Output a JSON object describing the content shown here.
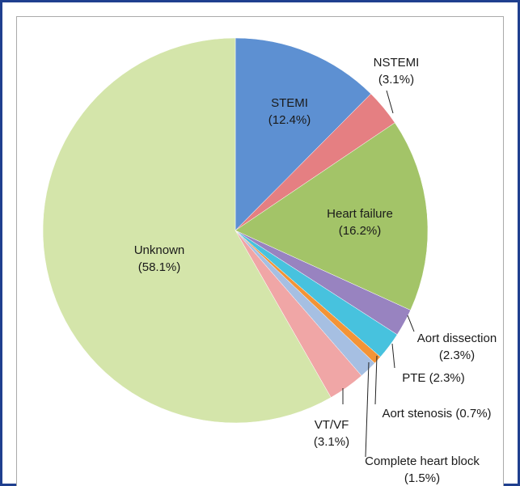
{
  "chart_data": {
    "type": "pie",
    "categories": [
      "STEMI",
      "NSTEMI",
      "Heart failure",
      "Aort dissection",
      "PTE",
      "Aort stenosis",
      "Complete heart block",
      "VT/VF",
      "Unknown"
    ],
    "values": [
      12.4,
      3.1,
      16.2,
      2.3,
      2.3,
      0.7,
      1.5,
      3.1,
      58.1
    ],
    "value_labels": [
      "(12.4%)",
      "(3.1%)",
      "(16.2%)",
      "(2.3%)",
      "(2.3%)",
      "(0.7%)",
      "(1.5%)",
      "(3.1%)",
      "(58.1%)"
    ],
    "colors": [
      "#5d90d2",
      "#e57f82",
      "#a3c468",
      "#9883c0",
      "#47c2de",
      "#f39436",
      "#a6bfe2",
      "#f0a6a6",
      "#d4e5aa"
    ]
  }
}
